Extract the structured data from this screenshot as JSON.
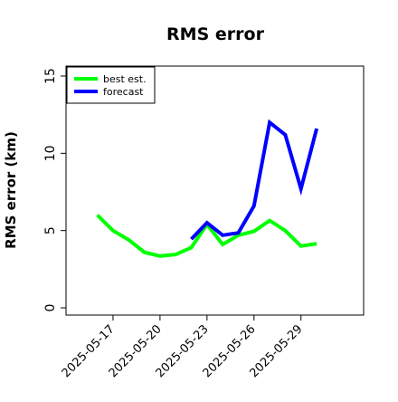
{
  "chart_data": {
    "type": "line",
    "title": "RMS error",
    "xlabel": "",
    "ylabel": "RMS error (km)",
    "ylim": [
      0,
      15
    ],
    "yticks": [
      0,
      5,
      10,
      15
    ],
    "xticks": [
      "2025-05-17",
      "2025-05-20",
      "2025-05-23",
      "2025-05-26",
      "2025-05-29"
    ],
    "xlim": [
      "2025-05-14",
      "2025-06-02"
    ],
    "grid": false,
    "legend_position": "top-left",
    "series": [
      {
        "name": "best est.",
        "color": "#00ff00",
        "points": [
          {
            "x": "2025-05-16",
            "y": 6.0
          },
          {
            "x": "2025-05-17",
            "y": 5.0
          },
          {
            "x": "2025-05-18",
            "y": 4.4
          },
          {
            "x": "2025-05-19",
            "y": 3.6
          },
          {
            "x": "2025-05-20",
            "y": 3.35
          },
          {
            "x": "2025-05-21",
            "y": 3.45
          },
          {
            "x": "2025-05-22",
            "y": 3.9
          },
          {
            "x": "2025-05-23",
            "y": 5.4
          },
          {
            "x": "2025-05-24",
            "y": 4.1
          },
          {
            "x": "2025-05-25",
            "y": 4.7
          },
          {
            "x": "2025-05-26",
            "y": 4.95
          },
          {
            "x": "2025-05-27",
            "y": 5.65
          },
          {
            "x": "2025-05-28",
            "y": 5.0
          },
          {
            "x": "2025-05-29",
            "y": 4.0
          },
          {
            "x": "2025-05-30",
            "y": 4.15
          }
        ]
      },
      {
        "name": "forecast",
        "color": "#0000ff",
        "points": [
          {
            "x": "2025-05-22",
            "y": 4.45
          },
          {
            "x": "2025-05-23",
            "y": 5.5
          },
          {
            "x": "2025-05-24",
            "y": 4.7
          },
          {
            "x": "2025-05-25",
            "y": 4.85
          },
          {
            "x": "2025-05-26",
            "y": 6.6
          },
          {
            "x": "2025-05-27",
            "y": 12.0
          },
          {
            "x": "2025-05-28",
            "y": 11.2
          },
          {
            "x": "2025-05-29",
            "y": 7.7
          },
          {
            "x": "2025-05-30",
            "y": 11.6
          }
        ]
      }
    ]
  }
}
